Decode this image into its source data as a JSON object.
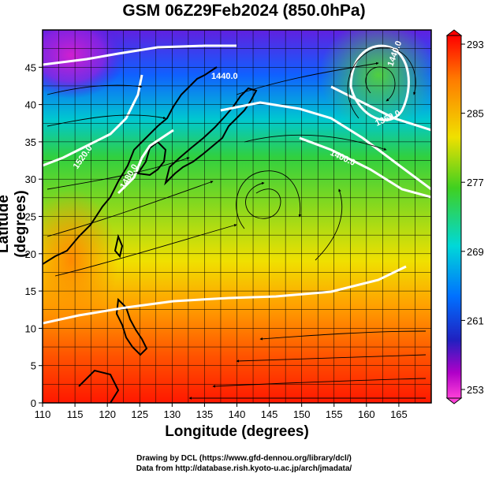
{
  "title": "GSM 06Z29Feb2024 (850.0hPa)",
  "x_axis": {
    "label": "Longitude (degrees)",
    "ticks": [
      "110",
      "115",
      "120",
      "125",
      "130",
      "135",
      "140",
      "145",
      "150",
      "155",
      "160",
      "165"
    ]
  },
  "y_axis": {
    "label": "Latitude  (degrees)",
    "ticks": [
      "0",
      "5",
      "10",
      "15",
      "20",
      "25",
      "30",
      "35",
      "40",
      "45"
    ]
  },
  "colorbar": {
    "labels": [
      "293",
      "285",
      "277",
      "269",
      "261",
      "253"
    ],
    "stops": [
      "#ff0000",
      "#ff7a00",
      "#f0e000",
      "#40d020",
      "#00d8d8",
      "#0070ff",
      "#2020c0",
      "#b000c8",
      "#ff40d8"
    ]
  },
  "contour_labels": [
    {
      "text": "1440.0"
    },
    {
      "text": "1520.0"
    },
    {
      "text": "1480.0"
    },
    {
      "text": "1400.0"
    },
    {
      "text": "1360.0"
    },
    {
      "text": "1440.0"
    }
  ],
  "credits": {
    "line1": "Drawing by DCL (https://www.gfd-dennou.org/library/dcl/)",
    "line2": "Data from http://database.rish.kyoto-u.ac.jp/arch/jmadata/"
  }
}
